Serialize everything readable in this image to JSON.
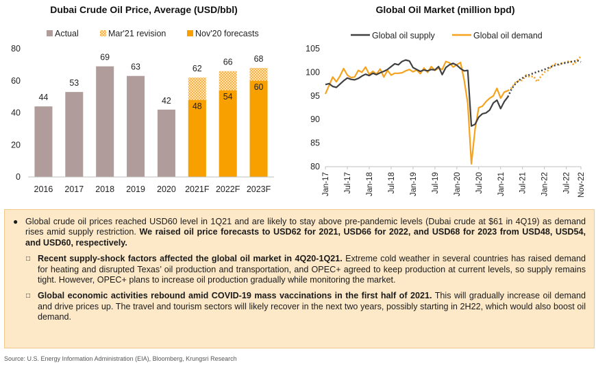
{
  "left_chart": {
    "title": "Dubai Crude Oil Price, Average (USD/bbl)",
    "legend": [
      "Actual",
      "Mar'21 revision",
      "Nov'20 forecasts"
    ]
  },
  "right_chart": {
    "title": "Global Oil Market (million bpd)",
    "legend": [
      "Global oil supply",
      "Global oil demand"
    ]
  },
  "text": {
    "b1_normal": "Global crude oil prices reached USD60 level in 1Q21 and are likely to stay above pre-pandemic levels (Dubai crude at $61 in 4Q19) as demand rises amid supply restriction. ",
    "b1_bold": "We raised oil price forecasts to USD62 for 2021, USD66 for 2022, and USD68 for 2023 from USD48, USD54, and USD60, respectively.",
    "s1_bold": "Recent supply-shock factors affected the global oil market in 4Q20-1Q21.",
    "s1_normal": " Extreme cold weather in several countries has raised demand for heating and disrupted Texas’ oil production and transportation, and OPEC+ agreed to keep production at current levels, so supply remains tight. However, OPEC+ plans to increase oil production gradually while monitoring the market.",
    "s2_bold": "Global economic activities rebound amid COVID-19 mass vaccinations in the first half of 2021.",
    "s2_normal": " This will gradually increase oil demand and drive prices up. The travel and tourism sectors will likely recover in the next two years, possibly starting in 2H22, which would also boost oil demand."
  },
  "source": "Source: U.S. Energy Information Administration (EIA), Bloomberg, Krungsri Research",
  "colors": {
    "actual": "#b09c9a",
    "revision": "#fcd18a",
    "forecast": "#f7a000",
    "supply": "#404040",
    "demand": "#f5a21d"
  },
  "chart_data": [
    {
      "type": "bar",
      "title": "Dubai Crude Oil Price, Average (USD/bbl)",
      "categories": [
        "2016",
        "2017",
        "2018",
        "2019",
        "2020",
        "2021F",
        "2022F",
        "2023F"
      ],
      "series": [
        {
          "name": "Actual",
          "values": [
            44,
            53,
            69,
            63,
            42,
            null,
            null,
            null
          ]
        },
        {
          "name": "Nov'20 forecasts",
          "values": [
            null,
            null,
            null,
            null,
            null,
            48,
            54,
            60
          ]
        },
        {
          "name": "Mar'21 revision",
          "values": [
            null,
            null,
            null,
            null,
            null,
            62,
            66,
            68
          ]
        }
      ],
      "yticks": [
        0,
        20,
        40,
        60,
        80
      ],
      "ylim": [
        0,
        80
      ],
      "grid": false,
      "legend": "top"
    },
    {
      "type": "line",
      "title": "Global Oil Market (million bpd)",
      "xticks": [
        "Jan-17",
        "Jul-17",
        "Jan-18",
        "Jul-18",
        "Jan-19",
        "Jul-19",
        "Jan-20",
        "Jul-20",
        "Jan-21",
        "Jul-21",
        "Jan-22",
        "Jul-22",
        "Nov-22"
      ],
      "yticks": [
        80,
        85,
        90,
        95,
        100,
        105
      ],
      "ylim": [
        80,
        105
      ],
      "x_start": "Jan-17",
      "x_end": "Nov-22",
      "forecast_from": "Mar-21",
      "series": [
        {
          "name": "Global oil supply",
          "values": [
            97.4,
            97.6,
            97.0,
            96.8,
            97.5,
            98.2,
            98.8,
            98.5,
            98.4,
            98.7,
            99.2,
            99.6,
            99.3,
            99.8,
            99.5,
            99.9,
            100.2,
            100.6,
            101.2,
            101.8,
            101.6,
            102.3,
            102.6,
            102.4,
            101.0,
            100.6,
            100.2,
            100.5,
            100.3,
            100.6,
            100.5,
            101.2,
            99.5,
            101.0,
            101.6,
            101.9,
            101.5,
            100.8,
            100.3,
            100.4,
            88.6,
            89.0,
            90.5,
            91.2,
            91.4,
            92.0,
            93.5,
            94.1,
            92.3,
            93.8,
            94.8,
            96.5,
            97.5,
            98.3,
            98.8,
            99.2,
            99.5,
            99.8,
            100.1,
            100.3,
            100.6,
            100.9,
            101.2,
            101.5,
            101.7,
            101.9,
            102.0,
            102.2,
            102.3,
            102.5,
            102.2
          ]
        },
        {
          "name": "Global oil demand",
          "values": [
            95.4,
            97.2,
            99.0,
            98.0,
            99.2,
            100.8,
            99.4,
            98.9,
            99.0,
            100.4,
            100.0,
            101.1,
            99.6,
            100.2,
            99.6,
            100.7,
            99.0,
            100.4,
            99.4,
            99.8,
            99.8,
            99.9,
            100.3,
            100.6,
            100.1,
            100.5,
            99.7,
            100.9,
            100.0,
            101.2,
            100.4,
            100.9,
            100.6,
            102.3,
            102.0,
            101.1,
            101.6,
            102.1,
            98.4,
            93.4,
            80.6,
            88.0,
            92.5,
            92.8,
            93.8,
            94.5,
            95.0,
            96.6,
            94.5,
            95.8,
            96.1,
            96.7,
            97.8,
            98.2,
            98.3,
            99.4,
            99.0,
            99.2,
            98.0,
            99.1,
            100.0,
            100.4,
            101.3,
            101.8,
            101.6,
            102.0,
            102.1,
            102.5,
            101.6,
            102.6,
            103.4
          ]
        }
      ],
      "grid": false,
      "legend": "top"
    }
  ]
}
